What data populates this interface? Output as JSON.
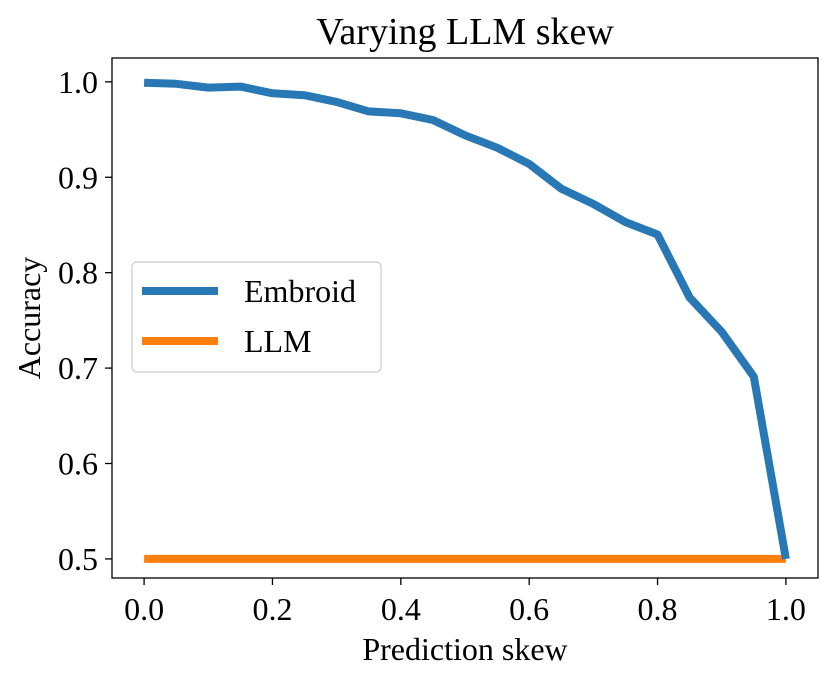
{
  "chart_data": {
    "type": "line",
    "title": "Varying LLM skew",
    "xlabel": "Prediction skew",
    "ylabel": "Accuracy",
    "xlim": [
      -0.05,
      1.05
    ],
    "ylim": [
      0.48,
      1.025
    ],
    "xticks": [
      0.0,
      0.2,
      0.4,
      0.6,
      0.8,
      1.0
    ],
    "xtick_labels": [
      "0.0",
      "0.2",
      "0.4",
      "0.6",
      "0.8",
      "1.0"
    ],
    "yticks": [
      0.5,
      0.6,
      0.7,
      0.8,
      0.9,
      1.0
    ],
    "ytick_labels": [
      "0.5",
      "0.6",
      "0.7",
      "0.8",
      "0.9",
      "1.0"
    ],
    "grid": false,
    "legend_position": "center-left",
    "series": [
      {
        "name": "Embroid",
        "color": "#2878b5",
        "x": [
          0.0,
          0.05,
          0.1,
          0.15,
          0.2,
          0.25,
          0.3,
          0.35,
          0.4,
          0.45,
          0.5,
          0.55,
          0.6,
          0.65,
          0.7,
          0.75,
          0.8,
          0.85,
          0.9,
          0.95,
          1.0
        ],
        "y": [
          0.999,
          0.998,
          0.994,
          0.995,
          0.988,
          0.986,
          0.979,
          0.969,
          0.967,
          0.96,
          0.944,
          0.931,
          0.914,
          0.888,
          0.872,
          0.853,
          0.84,
          0.774,
          0.738,
          0.691,
          0.5
        ]
      },
      {
        "name": "LLM",
        "color": "#ff7f0e",
        "x": [
          0.0,
          1.0
        ],
        "y": [
          0.5,
          0.5
        ]
      }
    ]
  }
}
